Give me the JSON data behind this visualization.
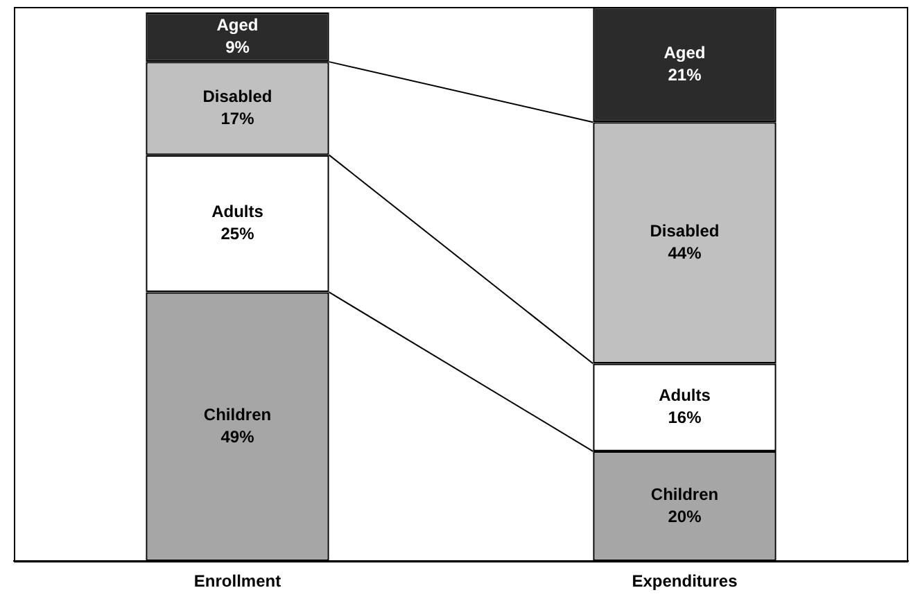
{
  "chart_data": {
    "type": "bar",
    "stacked": true,
    "legend": false,
    "grid": false,
    "tick_labels": "x",
    "categories": [
      "Enrollment",
      "Expenditures"
    ],
    "series": [
      {
        "name": "Children",
        "color": "#a6a6a6",
        "values": [
          49,
          20
        ],
        "value_labels": [
          "49%",
          "20%"
        ]
      },
      {
        "name": "Adults",
        "color": "#ffffff",
        "values": [
          25,
          16
        ],
        "value_labels": [
          "25%",
          "16%"
        ]
      },
      {
        "name": "Disabled",
        "color": "#c0c0c0",
        "values": [
          17,
          44
        ],
        "value_labels": [
          "17%",
          "44%"
        ]
      },
      {
        "name": "Aged",
        "color": "#2b2b2b",
        "values": [
          9,
          21
        ],
        "value_labels": [
          "9%",
          "21%"
        ]
      }
    ]
  }
}
